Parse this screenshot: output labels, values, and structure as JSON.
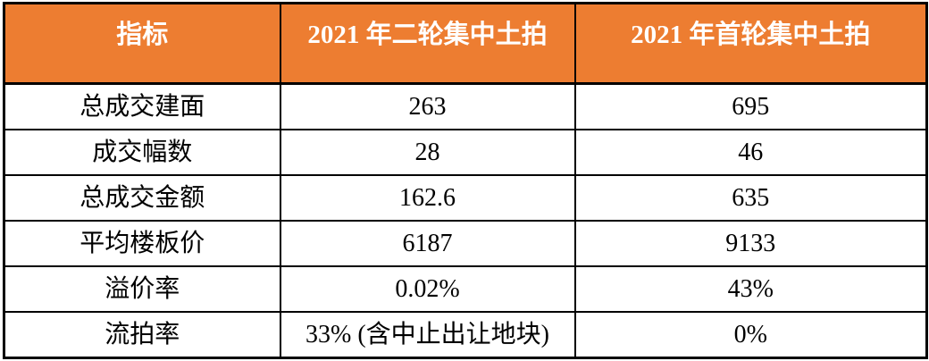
{
  "chart_data": {
    "type": "table",
    "title": "",
    "columns": [
      "指标",
      "2021 年二轮集中土拍",
      "2021 年首轮集中土拍"
    ],
    "rows": [
      [
        "总成交建面",
        "263",
        "695"
      ],
      [
        "成交幅数",
        "28",
        "46"
      ],
      [
        "总成交金额",
        "162.6",
        "635"
      ],
      [
        "平均楼板价",
        "6187",
        "9133"
      ],
      [
        "溢价率",
        "0.02%",
        "43%"
      ],
      [
        "流拍率",
        "33% (含中止出让地块)",
        "0%"
      ]
    ]
  },
  "style": {
    "header_bg_color": "#ED7D31",
    "header_text_color": "#FFFFFF",
    "border_color": "#000000",
    "body_text_color": "#000000"
  }
}
